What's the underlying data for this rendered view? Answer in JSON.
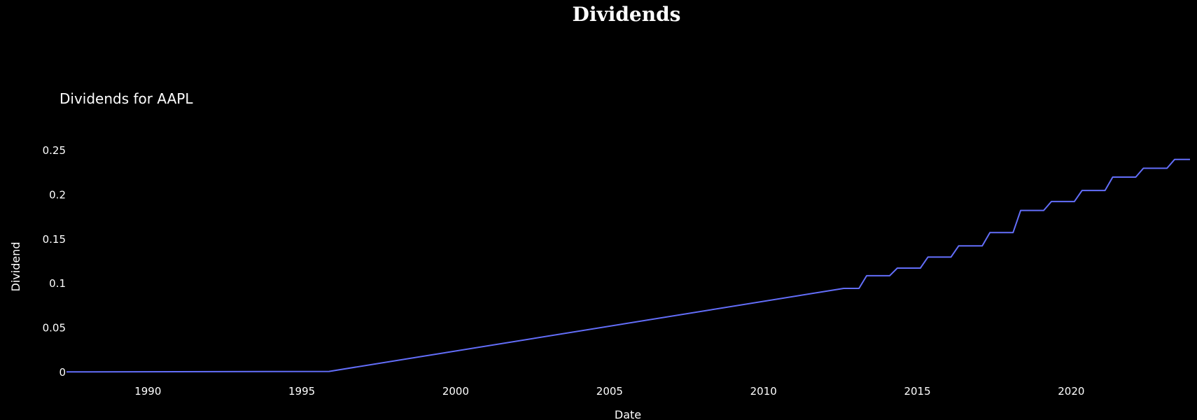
{
  "page": {
    "title": "Dividends"
  },
  "chart_data": {
    "type": "line",
    "title": "Dividends for AAPL",
    "xlabel": "Date",
    "ylabel": "Dividend",
    "x_ticks": [
      "1990",
      "1995",
      "2000",
      "2005",
      "2010",
      "2015",
      "2020"
    ],
    "y_ticks": [
      "0",
      "0.05",
      "0.1",
      "0.15",
      "0.2",
      "0.25"
    ],
    "xlim": [
      "1987-05-11",
      "2023-11-10"
    ],
    "ylim": [
      0,
      0.25
    ],
    "grid": false,
    "legend": "none",
    "line_color": "#636efa",
    "series": [
      {
        "x": [
          "1987-05-11",
          "1995-11-21",
          "2012-08-09",
          "2013-02-07",
          "2013-05-09",
          "2014-02-06",
          "2014-05-08",
          "2015-02-05",
          "2015-05-07",
          "2016-02-04",
          "2016-05-05",
          "2017-02-09",
          "2017-05-11",
          "2018-02-09",
          "2018-05-11",
          "2019-02-08",
          "2019-05-10",
          "2020-02-07",
          "2020-05-08",
          "2021-02-05",
          "2021-05-07",
          "2022-02-04",
          "2022-05-06",
          "2023-02-10",
          "2023-05-12",
          "2023-08-11",
          "2023-11-10"
        ],
        "values": [
          0.00054,
          0.00109,
          0.09464,
          0.09464,
          0.10893,
          0.10893,
          0.1175,
          0.1175,
          0.13,
          0.13,
          0.1425,
          0.1425,
          0.1575,
          0.1575,
          0.1825,
          0.1825,
          0.1925,
          0.1925,
          0.205,
          0.205,
          0.22,
          0.22,
          0.23,
          0.23,
          0.24,
          0.24,
          0.24
        ]
      }
    ]
  }
}
